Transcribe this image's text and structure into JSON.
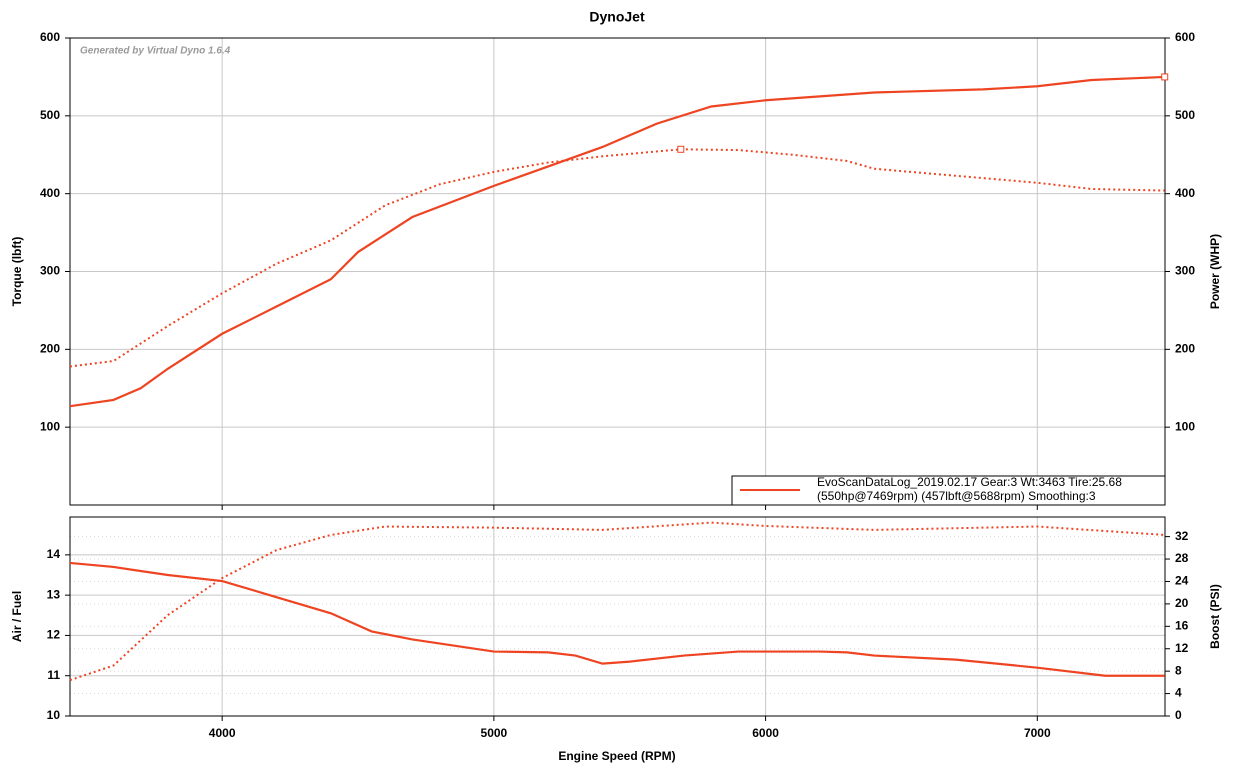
{
  "chart_data": [
    {
      "type": "line",
      "title": "DynoJet",
      "annotation": "Generated by Virtual Dyno 1.6.4",
      "ylabel": "Torque (lbft)",
      "y2label": "Power (WHP)",
      "xlim": [
        3440,
        7470
      ],
      "xticks": [
        4000,
        5000,
        6000,
        7000
      ],
      "ylim": [
        0,
        600
      ],
      "yticks": [
        100,
        200,
        300,
        400,
        500,
        600
      ],
      "y2lim": [
        0,
        600
      ],
      "y2ticks": [
        100,
        200,
        300,
        400,
        500,
        600
      ],
      "grid": true,
      "legend": [
        "EvoScanDataLog_2019.02.17 Gear:3 Wt:3463 Tire:25.68",
        "(550hp@7469rpm) (457lbft@5688rpm) Smoothing:3"
      ],
      "legend_color": "#ee4422",
      "series": [
        {
          "color": "#ee4422",
          "style": "solid",
          "axis": "y2",
          "x": [
            3440,
            3600,
            3700,
            3800,
            4000,
            4200,
            4400,
            4500,
            4700,
            5000,
            5200,
            5400,
            5600,
            5800,
            6000,
            6400,
            6800,
            7000,
            7200,
            7469
          ],
          "values": [
            127,
            135,
            150,
            175,
            220,
            255,
            290,
            325,
            370,
            410,
            435,
            460,
            490,
            512,
            520,
            530,
            534,
            538,
            546,
            550
          ],
          "peak_x": 7469,
          "peak": 550
        },
        {
          "color": "#ee4422",
          "style": "dotted",
          "x": [
            3440,
            3600,
            3800,
            4000,
            4200,
            4400,
            4600,
            4800,
            5000,
            5200,
            5400,
            5688,
            5900,
            6100,
            6300,
            6400,
            6800,
            7000,
            7200,
            7469
          ],
          "values": [
            178,
            185,
            230,
            272,
            310,
            340,
            385,
            412,
            428,
            440,
            448,
            457,
            456,
            450,
            442,
            432,
            420,
            414,
            406,
            404
          ],
          "peak_x": 5688,
          "peak": 457
        }
      ]
    },
    {
      "type": "line",
      "xlabel": "Engine Speed (RPM)",
      "ylabel": "Air / Fuel",
      "y2label": "Boost (PSI)",
      "xlim": [
        3440,
        7470
      ],
      "xticks": [
        4000,
        5000,
        6000,
        7000
      ],
      "ylim": [
        10,
        14.94
      ],
      "yticks": [
        10,
        11,
        12,
        13,
        14
      ],
      "y2lim": [
        0,
        35.5
      ],
      "y2ticks": [
        0,
        4,
        8,
        12,
        16,
        20,
        24,
        28,
        32
      ],
      "grid": true,
      "series": [
        {
          "color": "#ee4422",
          "style": "solid",
          "x": [
            3440,
            3600,
            3800,
            4000,
            4200,
            4400,
            4550,
            4700,
            5000,
            5200,
            5300,
            5400,
            5500,
            5700,
            5900,
            6200,
            6300,
            6400,
            6700,
            7000,
            7250,
            7469
          ],
          "values": [
            13.8,
            13.7,
            13.5,
            13.35,
            12.95,
            12.55,
            12.1,
            11.9,
            11.6,
            11.58,
            11.5,
            11.3,
            11.35,
            11.5,
            11.6,
            11.6,
            11.58,
            11.5,
            11.4,
            11.2,
            11.0,
            11.0
          ]
        },
        {
          "color": "#ee4422",
          "style": "dotted",
          "axis": "y2",
          "x": [
            3440,
            3600,
            3800,
            4000,
            4200,
            4400,
            4600,
            5000,
            5400,
            5800,
            6000,
            6400,
            7000,
            7469
          ],
          "values": [
            6.4,
            9,
            18,
            24.6,
            29.6,
            32.3,
            33.8,
            33.6,
            33.2,
            34.5,
            33.9,
            33.2,
            33.8,
            32.3
          ]
        }
      ]
    }
  ]
}
